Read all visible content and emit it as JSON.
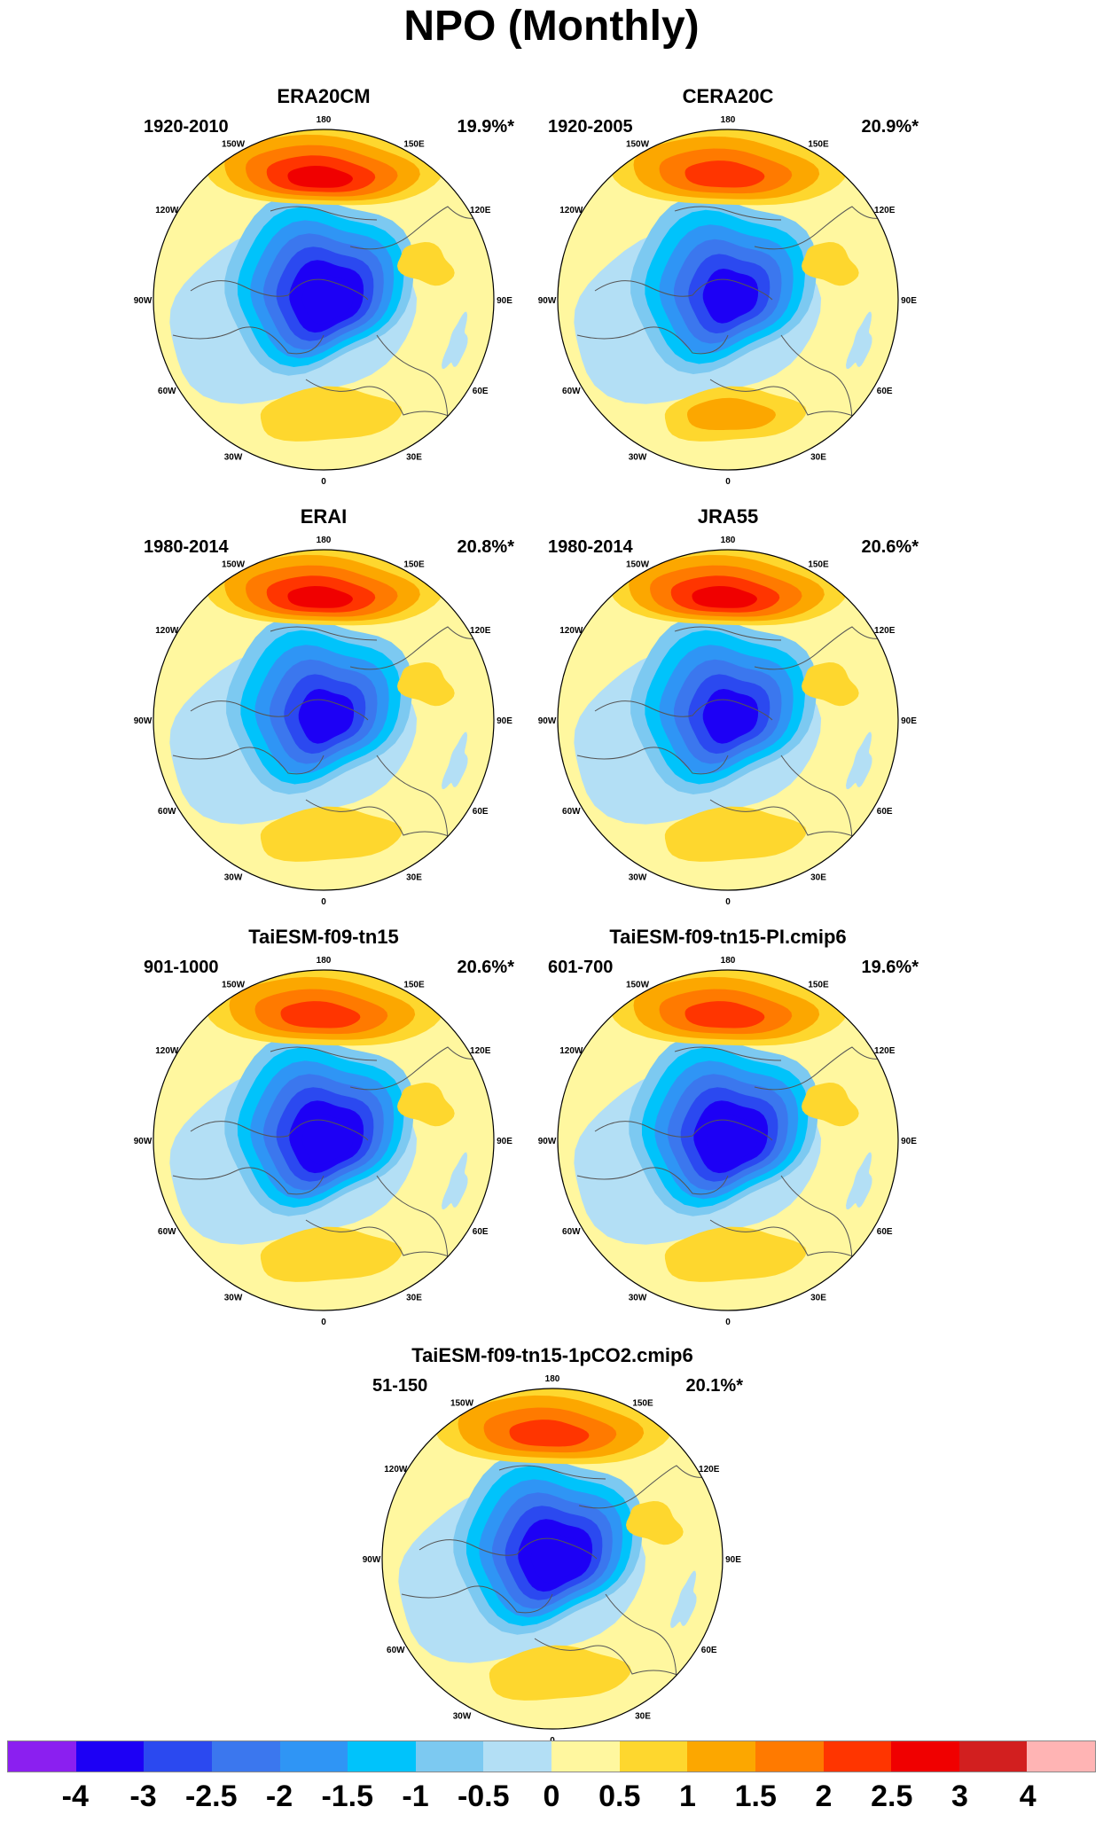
{
  "title": "NPO (Monthly)",
  "panels": [
    {
      "title": "ERA20CM",
      "period": "1920-2010",
      "variance": "19.9%*",
      "pos_max_level": 2.5,
      "neg_max_level": -3.5
    },
    {
      "title": "CERA20C",
      "period": "1920-2005",
      "variance": "20.9%*",
      "pos_max_level": 2,
      "neg_max_level": -3
    },
    {
      "title": "ERAI",
      "period": "1980-2014",
      "variance": "20.8%*",
      "pos_max_level": 2.5,
      "neg_max_level": -3
    },
    {
      "title": "JRA55",
      "period": "1980-2014",
      "variance": "20.6%*",
      "pos_max_level": 2.5,
      "neg_max_level": -3
    },
    {
      "title": "TaiESM-f09-tn15",
      "period": "901-1000",
      "variance": "20.6%*",
      "pos_max_level": 2,
      "neg_max_level": -3.5
    },
    {
      "title": "TaiESM-f09-tn15-PI.cmip6",
      "period": "601-700",
      "variance": "19.6%*",
      "pos_max_level": 2,
      "neg_max_level": -3.5
    },
    {
      "title": "TaiESM-f09-tn15-1pCO2.cmip6",
      "period": "51-150",
      "variance": "20.1%*",
      "pos_max_level": 2,
      "neg_max_level": -3.5
    }
  ],
  "longitude_labels": [
    "180",
    "150E",
    "120E",
    "90E",
    "60E",
    "30E",
    "0",
    "30W",
    "60W",
    "90W",
    "120W",
    "150W"
  ],
  "colorbar": {
    "colors": [
      "#8b1ff0",
      "#1d00f5",
      "#2b49f0",
      "#3b77ee",
      "#2f95f5",
      "#00c3fb",
      "#7cc9f1",
      "#b3dff5",
      "#fff79f",
      "#fed72e",
      "#fca700",
      "#ff7a00",
      "#ff3500",
      "#f00000",
      "#d21f1f",
      "#ffb4b4"
    ],
    "labels": [
      "-4",
      "-3",
      "-2.5",
      "-2",
      "-1.5",
      "-1",
      "-0.5",
      "0",
      "0.5",
      "1",
      "1.5",
      "2",
      "2.5",
      "3",
      "4"
    ]
  }
}
